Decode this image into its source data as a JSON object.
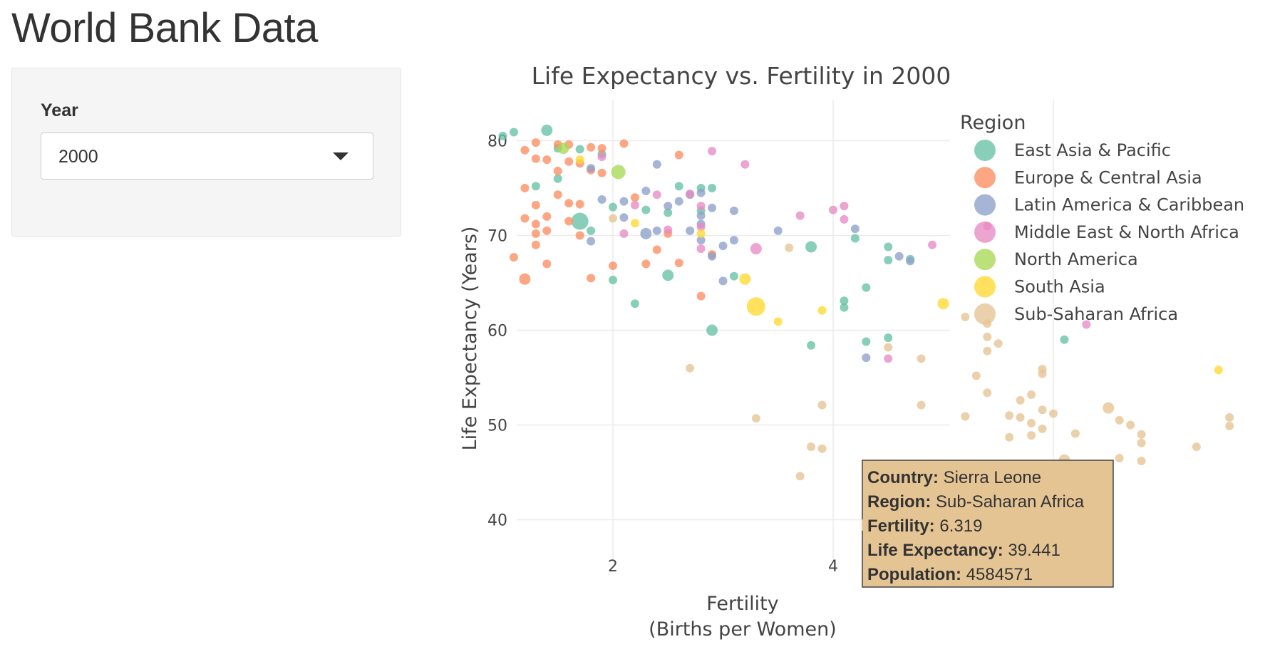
{
  "app": {
    "title": "World Bank Data"
  },
  "sidebar": {
    "year_label": "Year",
    "year_value": "2000"
  },
  "chart_data": {
    "type": "scatter",
    "title": "Life Expectancy vs. Fertility in 2000",
    "xlabel": "Fertility",
    "xlabel_sub": "(Births per Women)",
    "ylabel": "Life Expectancy (Years)",
    "xlim": [
      0.7,
      7.0
    ],
    "ylim": [
      35,
      84
    ],
    "xticks": [
      2,
      4,
      6
    ],
    "yticks": [
      40,
      50,
      60,
      70,
      80
    ],
    "grid": true,
    "legend_title": "Region",
    "legend_placement": "right",
    "series": [
      {
        "name": "East Asia & Pacific",
        "color": "#66c2a5",
        "points": [
          [
            1.0,
            80.5,
            1
          ],
          [
            1.1,
            80.9,
            1
          ],
          [
            1.4,
            81.1,
            2
          ],
          [
            1.7,
            79.1,
            1
          ],
          [
            1.9,
            78.6,
            1
          ],
          [
            1.5,
            76.0,
            1
          ],
          [
            1.3,
            75.2,
            1
          ],
          [
            1.7,
            71.5,
            5
          ],
          [
            2.0,
            73.0,
            1
          ],
          [
            2.3,
            72.7,
            1
          ],
          [
            2.5,
            72.4,
            1
          ],
          [
            2.6,
            75.2,
            1
          ],
          [
            2.8,
            75.0,
            1
          ],
          [
            2.9,
            75.0,
            1
          ],
          [
            1.8,
            70.5,
            1
          ],
          [
            2.0,
            65.3,
            1
          ],
          [
            2.5,
            65.8,
            2
          ],
          [
            2.2,
            62.8,
            1
          ],
          [
            2.9,
            60.0,
            2
          ],
          [
            3.8,
            68.8,
            2
          ],
          [
            3.1,
            65.7,
            1
          ],
          [
            4.1,
            63.1,
            1
          ],
          [
            4.1,
            62.4,
            1
          ],
          [
            4.3,
            64.5,
            1
          ],
          [
            3.8,
            58.4,
            1
          ],
          [
            4.3,
            58.8,
            1
          ],
          [
            4.5,
            59.2,
            1
          ],
          [
            4.2,
            69.7,
            1
          ],
          [
            4.5,
            68.8,
            1
          ],
          [
            4.5,
            67.4,
            1
          ],
          [
            4.7,
            67.5,
            1
          ],
          [
            6.1,
            59.0,
            1
          ],
          [
            1.5,
            79.2,
            1
          ],
          [
            2.8,
            72.6,
            1
          ]
        ]
      },
      {
        "name": "Europe & Central Asia",
        "color": "#fc8d62",
        "points": [
          [
            1.2,
            79.0,
            1
          ],
          [
            1.3,
            79.8,
            1
          ],
          [
            1.5,
            79.6,
            1
          ],
          [
            1.6,
            79.6,
            1
          ],
          [
            1.8,
            79.3,
            1
          ],
          [
            1.9,
            79.2,
            1
          ],
          [
            2.1,
            79.7,
            1
          ],
          [
            2.6,
            78.5,
            1
          ],
          [
            1.3,
            78.1,
            1
          ],
          [
            1.4,
            78.0,
            1
          ],
          [
            1.6,
            77.8,
            1
          ],
          [
            1.7,
            77.6,
            1
          ],
          [
            1.8,
            76.9,
            1
          ],
          [
            1.9,
            76.6,
            1
          ],
          [
            1.5,
            76.8,
            1
          ],
          [
            1.2,
            75.0,
            1
          ],
          [
            1.5,
            74.3,
            1
          ],
          [
            1.2,
            71.8,
            1
          ],
          [
            1.3,
            71.2,
            1
          ],
          [
            1.4,
            72.0,
            1
          ],
          [
            1.6,
            71.5,
            1
          ],
          [
            1.4,
            70.5,
            1
          ],
          [
            1.3,
            70.2,
            1
          ],
          [
            1.7,
            70.0,
            1
          ],
          [
            1.3,
            69.0,
            1
          ],
          [
            1.1,
            67.7,
            1
          ],
          [
            1.4,
            67.0,
            1
          ],
          [
            1.2,
            65.4,
            2
          ],
          [
            2.0,
            66.8,
            1
          ],
          [
            2.6,
            67.1,
            1
          ],
          [
            2.4,
            68.5,
            1
          ],
          [
            2.2,
            74.0,
            1
          ],
          [
            2.5,
            70.2,
            1
          ],
          [
            1.8,
            65.5,
            1
          ],
          [
            2.8,
            63.6,
            1
          ],
          [
            2.3,
            67.0,
            1
          ],
          [
            1.3,
            73.2,
            1
          ],
          [
            1.6,
            73.4,
            1
          ],
          [
            1.7,
            73.3,
            1
          ],
          [
            2.9,
            68.0,
            1
          ]
        ]
      },
      {
        "name": "Latin America & Caribbean",
        "color": "#8da0cb",
        "points": [
          [
            2.4,
            77.5,
            1
          ],
          [
            1.8,
            77.1,
            1
          ],
          [
            2.3,
            74.7,
            1
          ],
          [
            1.9,
            73.8,
            1
          ],
          [
            2.6,
            73.6,
            1
          ],
          [
            2.7,
            74.3,
            1
          ],
          [
            2.8,
            74.5,
            1
          ],
          [
            2.1,
            73.6,
            1
          ],
          [
            2.5,
            73.1,
            1
          ],
          [
            2.9,
            72.9,
            1
          ],
          [
            2.8,
            72.1,
            1
          ],
          [
            2.1,
            71.9,
            1
          ],
          [
            2.4,
            70.5,
            1
          ],
          [
            2.7,
            70.5,
            1
          ],
          [
            2.8,
            71.2,
            1
          ],
          [
            3.1,
            72.6,
            1
          ],
          [
            2.3,
            70.2,
            2
          ],
          [
            2.8,
            69.5,
            1
          ],
          [
            3.0,
            68.9,
            1
          ],
          [
            3.1,
            69.5,
            1
          ],
          [
            2.9,
            67.8,
            1
          ],
          [
            3.0,
            65.2,
            1
          ],
          [
            3.5,
            70.5,
            1
          ],
          [
            4.2,
            70.7,
            1
          ],
          [
            4.6,
            67.8,
            1
          ],
          [
            4.7,
            67.3,
            1
          ],
          [
            1.8,
            69.4,
            1
          ],
          [
            4.3,
            57.1,
            1
          ]
        ]
      },
      {
        "name": "Middle East & North Africa",
        "color": "#e78ac3",
        "points": [
          [
            2.9,
            78.9,
            1
          ],
          [
            3.2,
            77.5,
            1
          ],
          [
            1.9,
            78.3,
            1
          ],
          [
            2.4,
            74.3,
            1
          ],
          [
            2.2,
            73.2,
            1
          ],
          [
            2.7,
            74.4,
            1
          ],
          [
            2.8,
            73.1,
            1
          ],
          [
            2.5,
            70.6,
            1
          ],
          [
            2.1,
            70.2,
            1
          ],
          [
            2.8,
            70.9,
            1
          ],
          [
            2.8,
            68.6,
            1
          ],
          [
            3.3,
            68.6,
            2
          ],
          [
            3.7,
            72.1,
            1
          ],
          [
            4.0,
            72.7,
            1
          ],
          [
            4.1,
            73.1,
            1
          ],
          [
            4.1,
            71.7,
            1
          ],
          [
            4.9,
            69.0,
            1
          ],
          [
            5.4,
            71.0,
            1
          ],
          [
            6.3,
            60.6,
            1
          ],
          [
            4.5,
            57.0,
            1
          ]
        ]
      },
      {
        "name": "North America",
        "color": "#a6d854",
        "points": [
          [
            2.05,
            76.7,
            3
          ],
          [
            1.55,
            79.2,
            2
          ]
        ]
      },
      {
        "name": "South Asia",
        "color": "#ffd92f",
        "points": [
          [
            3.3,
            62.5,
            6
          ],
          [
            3.2,
            65.4,
            2
          ],
          [
            3.5,
            60.9,
            1
          ],
          [
            3.9,
            62.1,
            1
          ],
          [
            5.0,
            62.8,
            2
          ],
          [
            2.8,
            70.2,
            1
          ],
          [
            2.2,
            71.3,
            1
          ],
          [
            7.5,
            55.8,
            1
          ],
          [
            1.7,
            78.0,
            1
          ]
        ]
      },
      {
        "name": "Sub-Saharan Africa",
        "color": "#e5c494",
        "points": [
          [
            2.7,
            56.0,
            1
          ],
          [
            3.3,
            50.7,
            1
          ],
          [
            3.7,
            44.6,
            1
          ],
          [
            3.8,
            47.7,
            1
          ],
          [
            3.9,
            47.5,
            1
          ],
          [
            3.9,
            52.1,
            1
          ],
          [
            4.5,
            58.2,
            1
          ],
          [
            4.8,
            57.0,
            1
          ],
          [
            4.8,
            52.1,
            1
          ],
          [
            5.2,
            61.4,
            1
          ],
          [
            5.2,
            50.9,
            1
          ],
          [
            5.3,
            55.2,
            1
          ],
          [
            5.4,
            60.7,
            1
          ],
          [
            5.4,
            59.3,
            1
          ],
          [
            5.4,
            53.4,
            1
          ],
          [
            5.5,
            58.6,
            1
          ],
          [
            5.4,
            57.8,
            1
          ],
          [
            5.5,
            44.2,
            1
          ],
          [
            5.6,
            51.0,
            1
          ],
          [
            5.6,
            48.7,
            1
          ],
          [
            5.7,
            52.6,
            1
          ],
          [
            5.7,
            50.8,
            1
          ],
          [
            5.8,
            50.2,
            1
          ],
          [
            5.8,
            48.9,
            1
          ],
          [
            5.8,
            53.2,
            1
          ],
          [
            5.9,
            51.6,
            1
          ],
          [
            5.9,
            49.6,
            1
          ],
          [
            5.9,
            55.9,
            1
          ],
          [
            5.9,
            55.4,
            1
          ],
          [
            6.0,
            44.0,
            1
          ],
          [
            6.0,
            51.2,
            1
          ],
          [
            6.1,
            46.3,
            2
          ],
          [
            6.1,
            45.0,
            1
          ],
          [
            6.2,
            49.1,
            1
          ],
          [
            6.319,
            39.441,
            1
          ],
          [
            6.5,
            51.8,
            2
          ],
          [
            6.6,
            50.5,
            1
          ],
          [
            6.6,
            46.5,
            1
          ],
          [
            6.7,
            50.0,
            1
          ],
          [
            6.8,
            48.1,
            1
          ],
          [
            6.8,
            49.0,
            1
          ],
          [
            6.8,
            46.2,
            1
          ],
          [
            7.3,
            47.7,
            1
          ],
          [
            7.6,
            50.8,
            1
          ],
          [
            7.6,
            49.9,
            1
          ],
          [
            2.0,
            71.8,
            1
          ],
          [
            3.6,
            68.7,
            1
          ]
        ]
      }
    ],
    "hover": {
      "point": [
        6.319,
        39.441
      ],
      "rows": [
        {
          "label": "Country:",
          "value": "Sierra Leone"
        },
        {
          "label": "Region:",
          "value": "Sub-Saharan Africa"
        },
        {
          "label": "Fertility:",
          "value": "6.319"
        },
        {
          "label": "Life Expectancy:",
          "value": "39.441"
        },
        {
          "label": "Population:",
          "value": "4584571"
        }
      ]
    }
  }
}
